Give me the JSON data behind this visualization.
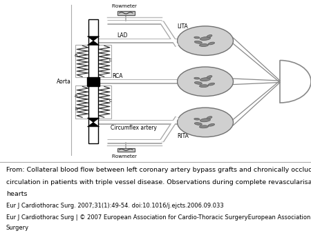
{
  "caption_lines": [
    "From: Collateral blood flow between left coronary artery bypass grafts and chronically occluded right coronary",
    "circulation in patients with triple vessel disease. Observations during complete revascularisation of beating",
    "hearts",
    "Eur J Cardiothorac Surg. 2007;31(1):49-54. doi:10.1016/j.ejcts.2006.09.033",
    "Eur J Cardiothorac Surg | © 2007 European Association for Cardio-Thoracic SurgeryEuropean Association for Cardio-Thoracic",
    "Surgery"
  ],
  "bg_color": "#ffffff",
  "black": "#000000",
  "gray_vessel": "#aaaaaa",
  "gray_circle": "#c8c8c8",
  "gray_inner": "#888888",
  "gray_blob": "#999999"
}
